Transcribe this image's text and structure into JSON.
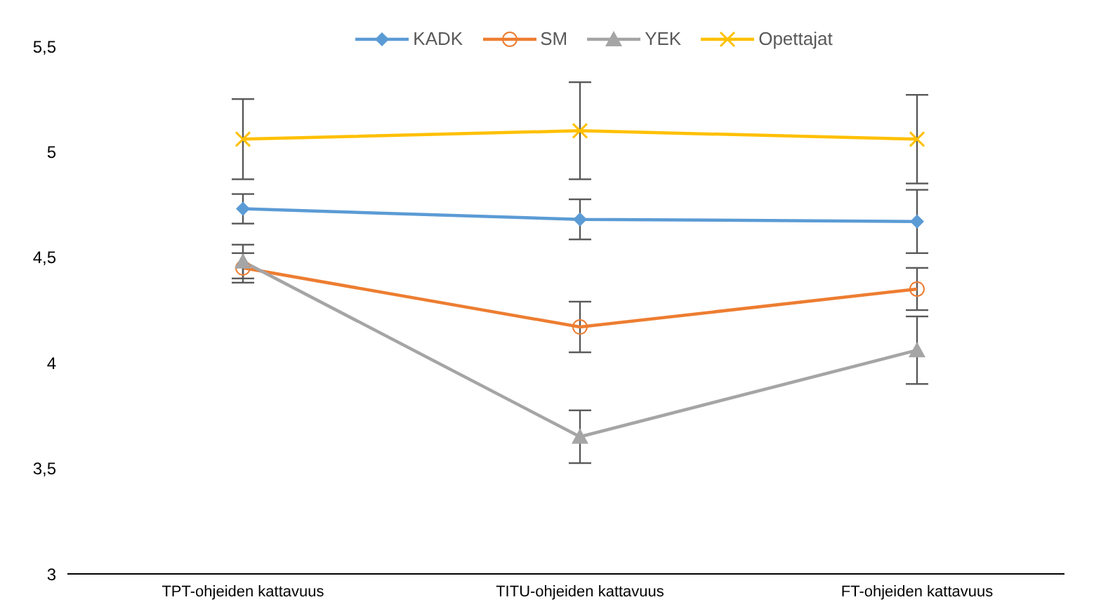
{
  "chart_data": {
    "type": "line",
    "categories": [
      "TPT-ohjeiden kattavuus",
      "TITU-ohjeiden kattavuus",
      "FT-ohjeiden kattavuus"
    ],
    "series": [
      {
        "name": "KADK",
        "color": "#5b9bd5",
        "marker": "diamond",
        "values": [
          4.73,
          4.68,
          4.67
        ],
        "errors": [
          0.07,
          0.095,
          0.15
        ]
      },
      {
        "name": "SM",
        "color": "#ed7d31",
        "marker": "circle",
        "values": [
          4.45,
          4.17,
          4.35
        ],
        "errors": [
          0.07,
          0.12,
          0.1
        ]
      },
      {
        "name": "YEK",
        "color": "#a5a5a5",
        "marker": "triangle",
        "values": [
          4.48,
          3.65,
          4.06
        ],
        "errors": [
          0.08,
          0.125,
          0.16
        ]
      },
      {
        "name": "Opettajat",
        "color": "#ffc000",
        "marker": "cross",
        "values": [
          5.06,
          5.1,
          5.06
        ],
        "errors": [
          0.19,
          0.23,
          0.21
        ]
      }
    ],
    "ylim": [
      3,
      5.5
    ],
    "yticks": [
      {
        "value": 3,
        "label": "3"
      },
      {
        "value": 3.5,
        "label": "3,5"
      },
      {
        "value": 4,
        "label": "4"
      },
      {
        "value": 4.5,
        "label": "4,5"
      },
      {
        "value": 5,
        "label": "5"
      },
      {
        "value": 5.5,
        "label": "5,5"
      }
    ],
    "grid": false,
    "legend": "top"
  }
}
